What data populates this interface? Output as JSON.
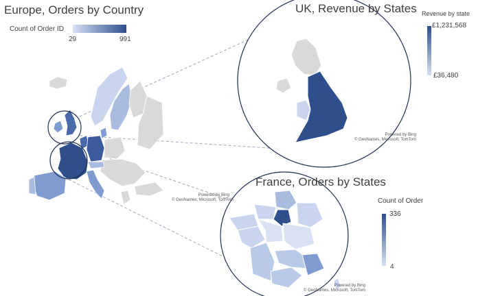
{
  "europe": {
    "title": "Europe, Orders by Country",
    "legend": {
      "label": "Count of Order ID",
      "min": "29",
      "max": "991",
      "min_color": "#d6e0f2",
      "max_color": "#2e4f8c"
    }
  },
  "uk": {
    "title": "UK, Revenue by States",
    "legend": {
      "label": "Revenue by state",
      "max": "£1,231,568",
      "min": "£36,480"
    },
    "attribution": {
      "line1": "Powered by Bing",
      "line2": "© GeoNames, Microsoft, TomTom"
    }
  },
  "france": {
    "title": "France, Orders by States",
    "legend": {
      "label": "Count of Order",
      "max": "336",
      "min": "4"
    },
    "attribution_top": {
      "line1": "Powered by Bing",
      "line2": "© GeoNames, Microsoft, TomTom"
    },
    "attribution_bottom": {
      "line1": "Powered by Bing",
      "line2": "© GeoNames, Microsoft, TomTom"
    }
  },
  "colors": {
    "high": "#2e4f8c",
    "mid": "#7f9bcf",
    "low": "#c9d5ee",
    "no_data": "#d9d9d9",
    "circle_stroke": "#1f2f4f"
  }
}
